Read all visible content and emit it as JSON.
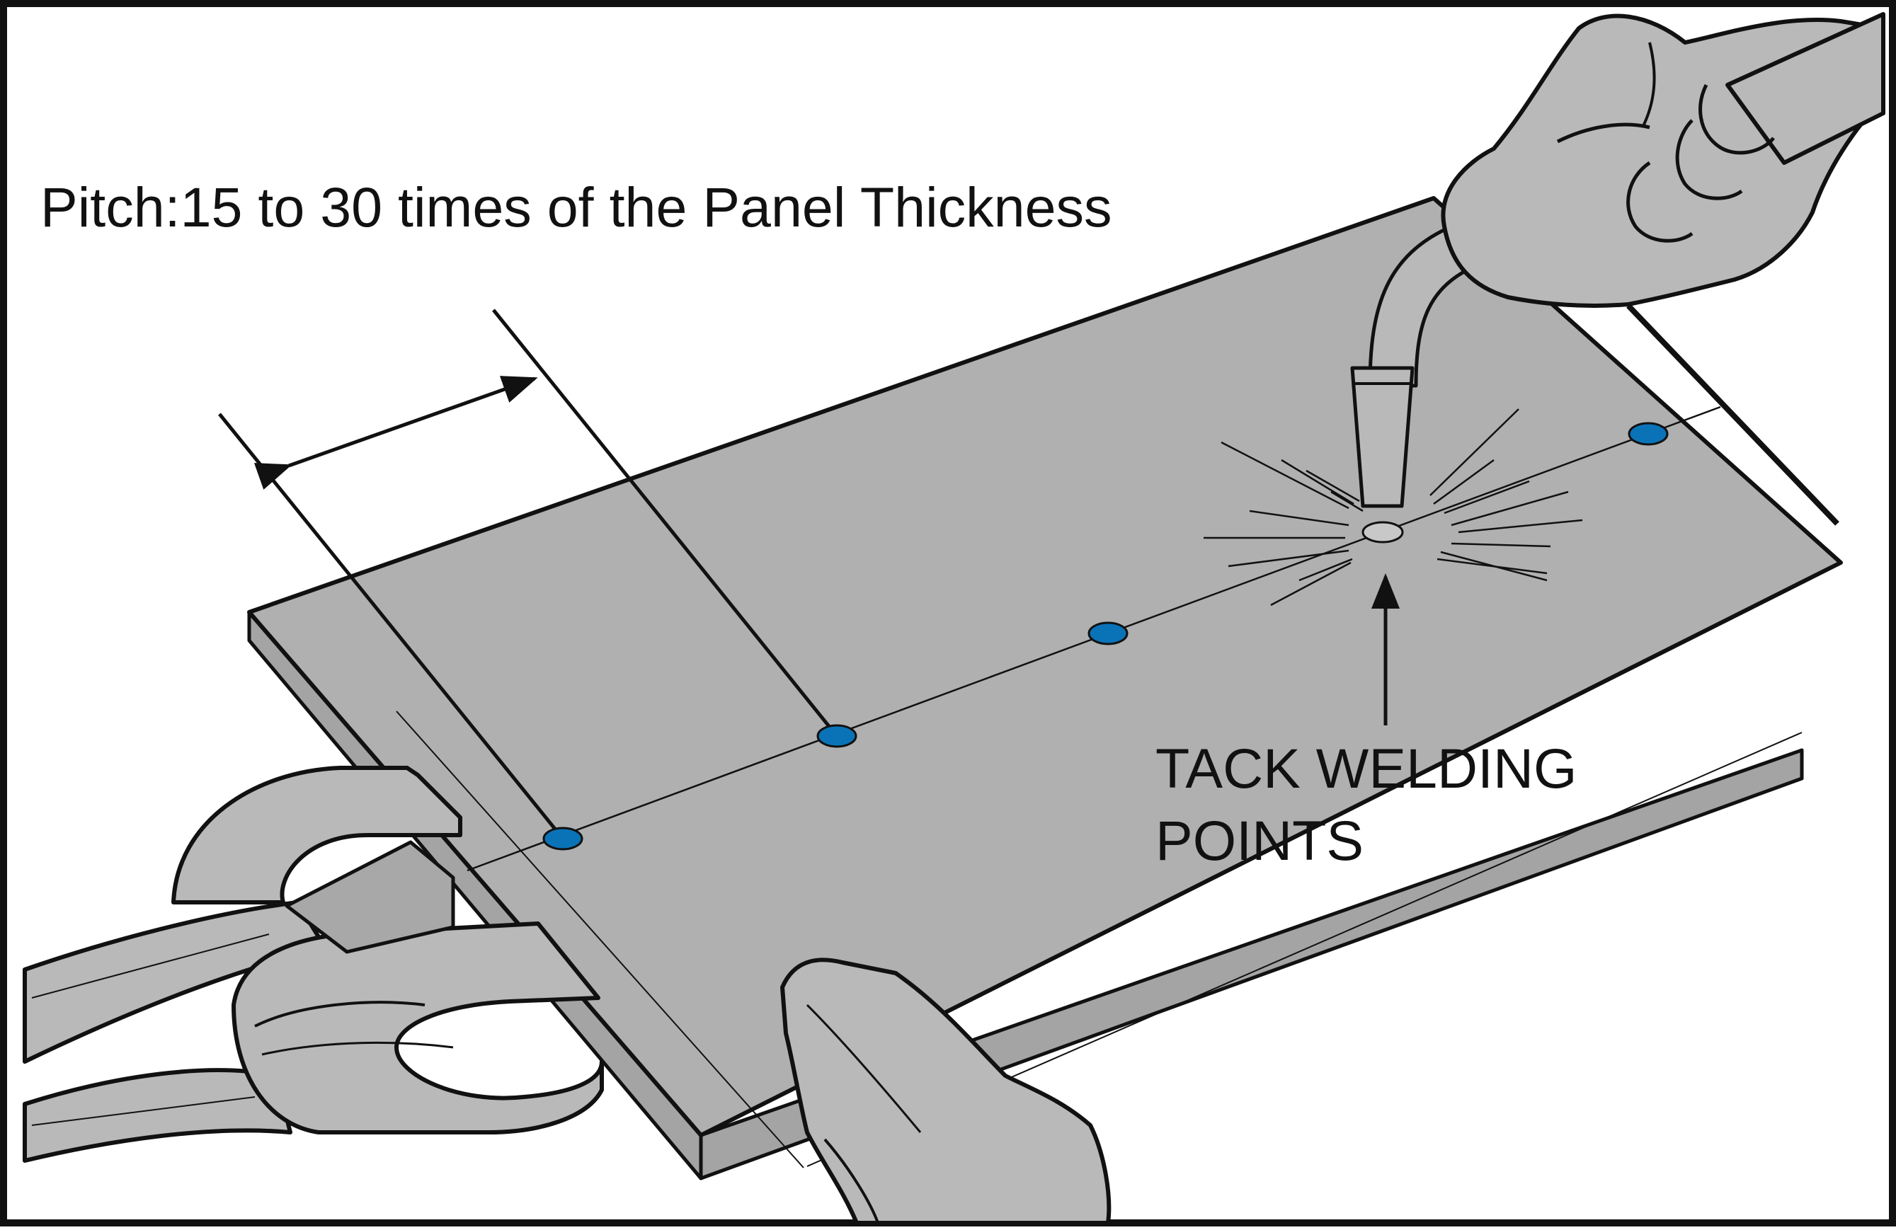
{
  "diagram": {
    "pitch_label": "Pitch:15 to 30 times of the Panel Thickness",
    "tack_label_line1": "TACK WELDING",
    "tack_label_line2": "POINTS",
    "tack_point_count": 4
  },
  "colors": {
    "panel": "#b0b0b0",
    "panel_edge": "#a4a4a4",
    "tool": "#b9b9b9",
    "tack_point": "#0a73b8",
    "outline": "#111111",
    "background": "#ffffff"
  },
  "icons": [
    "welding-torch-icon",
    "gloved-hand-icon",
    "clamp-pliers-icon",
    "sparks-icon"
  ]
}
